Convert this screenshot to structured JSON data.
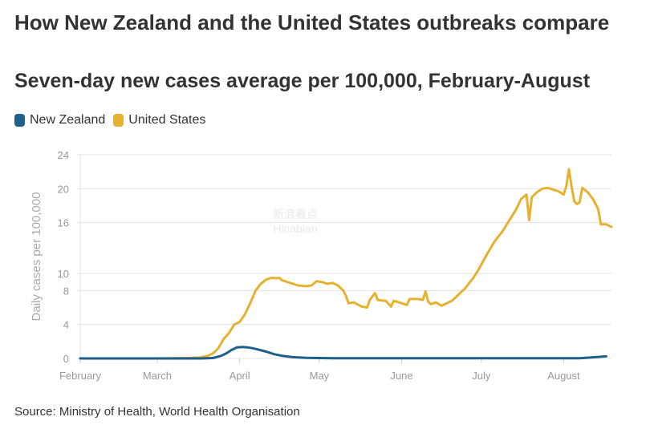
{
  "chart_data": {
    "type": "line",
    "title": "How New Zealand and the United States outbreaks compare",
    "subtitle": "Seven-day new cases average per 100,000, February-August",
    "ylabel": "Daily cases per 100,000",
    "xlabel": "",
    "ylim": [
      0,
      24
    ],
    "yticks": [
      0,
      4,
      8,
      10,
      16,
      20,
      24
    ],
    "xlim": [
      0,
      200
    ],
    "x_ticks": [
      {
        "label": "February",
        "day": 0
      },
      {
        "label": "March",
        "day": 29
      },
      {
        "label": "April",
        "day": 60
      },
      {
        "label": "May",
        "day": 90
      },
      {
        "label": "June",
        "day": 121
      },
      {
        "label": "July",
        "day": 151
      },
      {
        "label": "August",
        "day": 182
      }
    ],
    "x_unit": "days since February 1",
    "series": [
      {
        "name": "New Zealand",
        "color": "#1f5f8b",
        "points": [
          [
            0,
            0
          ],
          [
            45,
            0
          ],
          [
            50,
            0.05
          ],
          [
            53,
            0.3
          ],
          [
            55,
            0.6
          ],
          [
            57,
            1.0
          ],
          [
            59,
            1.3
          ],
          [
            61,
            1.35
          ],
          [
            63,
            1.3
          ],
          [
            65,
            1.2
          ],
          [
            67,
            1.05
          ],
          [
            70,
            0.8
          ],
          [
            73,
            0.5
          ],
          [
            76,
            0.3
          ],
          [
            80,
            0.15
          ],
          [
            85,
            0.08
          ],
          [
            95,
            0.03
          ],
          [
            120,
            0.02
          ],
          [
            150,
            0.03
          ],
          [
            180,
            0.02
          ],
          [
            188,
            0.03
          ],
          [
            192,
            0.1
          ],
          [
            196,
            0.2
          ],
          [
            198,
            0.25
          ]
        ]
      },
      {
        "name": "United States",
        "color": "#e6b12e",
        "points": [
          [
            0,
            0
          ],
          [
            30,
            0
          ],
          [
            40,
            0.05
          ],
          [
            45,
            0.1
          ],
          [
            48,
            0.3
          ],
          [
            50,
            0.6
          ],
          [
            52,
            1.2
          ],
          [
            54,
            2.3
          ],
          [
            56,
            3.0
          ],
          [
            58,
            4.0
          ],
          [
            60,
            4.3
          ],
          [
            62,
            5.2
          ],
          [
            64,
            6.5
          ],
          [
            66,
            8.0
          ],
          [
            68,
            8.8
          ],
          [
            70,
            9.3
          ],
          [
            72,
            9.5
          ],
          [
            74,
            9.45
          ],
          [
            75,
            9.5
          ],
          [
            76,
            9.2
          ],
          [
            79,
            8.9
          ],
          [
            82,
            8.6
          ],
          [
            85,
            8.5
          ],
          [
            87,
            8.6
          ],
          [
            89,
            9.1
          ],
          [
            91,
            9.0
          ],
          [
            93,
            8.8
          ],
          [
            95,
            8.9
          ],
          [
            97,
            8.6
          ],
          [
            99,
            8.0
          ],
          [
            100,
            7.4
          ],
          [
            101,
            6.5
          ],
          [
            103,
            6.6
          ],
          [
            106,
            6.1
          ],
          [
            108,
            6.0
          ],
          [
            109,
            6.9
          ],
          [
            111,
            7.7
          ],
          [
            112,
            6.9
          ],
          [
            114,
            6.8
          ],
          [
            115,
            6.8
          ],
          [
            117,
            6.1
          ],
          [
            118,
            6.8
          ],
          [
            121,
            6.5
          ],
          [
            123,
            6.3
          ],
          [
            124,
            7.0
          ],
          [
            127,
            7.0
          ],
          [
            129,
            6.9
          ],
          [
            130,
            7.9
          ],
          [
            131,
            6.7
          ],
          [
            132,
            6.4
          ],
          [
            134,
            6.6
          ],
          [
            136,
            6.2
          ],
          [
            138,
            6.5
          ],
          [
            140,
            6.8
          ],
          [
            142,
            7.4
          ],
          [
            145,
            8.3
          ],
          [
            148,
            9.5
          ],
          [
            150,
            10.5
          ],
          [
            153,
            12.2
          ],
          [
            156,
            13.8
          ],
          [
            159,
            15.0
          ],
          [
            162,
            16.5
          ],
          [
            164,
            17.5
          ],
          [
            166,
            18.8
          ],
          [
            168,
            19.3
          ],
          [
            169,
            16.3
          ],
          [
            170,
            19.0
          ],
          [
            172,
            19.6
          ],
          [
            174,
            20.0
          ],
          [
            176,
            20.1
          ],
          [
            178,
            19.9
          ],
          [
            180,
            19.7
          ],
          [
            182,
            19.3
          ],
          [
            183,
            20.3
          ],
          [
            184,
            22.3
          ],
          [
            185,
            20.2
          ],
          [
            186,
            18.5
          ],
          [
            187,
            18.2
          ],
          [
            188,
            18.4
          ],
          [
            189,
            20.1
          ],
          [
            191,
            19.6
          ],
          [
            193,
            18.8
          ],
          [
            195,
            17.6
          ],
          [
            196,
            15.8
          ],
          [
            198,
            15.8
          ],
          [
            200,
            15.5
          ]
        ]
      }
    ],
    "source": "Source: Ministry of Health, World Health Organisation"
  },
  "watermark": {
    "cn": "新浪看点",
    "en": "Hinabian"
  }
}
